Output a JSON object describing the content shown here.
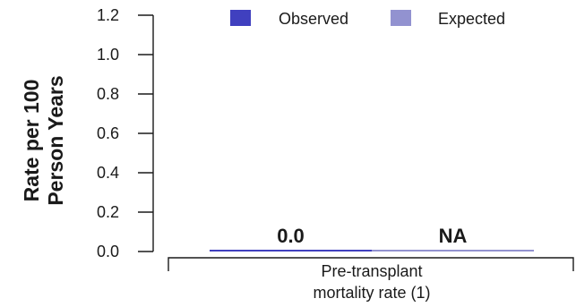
{
  "chart_data": {
    "type": "bar",
    "ylabel_lines": [
      "Rate per 100",
      "Person Years"
    ],
    "xlabel": "",
    "ylim": [
      0,
      1.2
    ],
    "yticks": [
      "0.0",
      "0.2",
      "0.4",
      "0.6",
      "0.8",
      "1.0",
      "1.2"
    ],
    "categories": [
      {
        "lines": [
          "Pre-transplant",
          "mortality rate (1)"
        ]
      }
    ],
    "series": [
      {
        "name": "Observed",
        "color": "#4040bf",
        "values": [
          0.0
        ],
        "labels": [
          "0.0"
        ]
      },
      {
        "name": "Expected",
        "color": "#9292d0",
        "values": [
          null
        ],
        "labels": [
          "NA"
        ]
      }
    ],
    "legend": {
      "position": "top"
    },
    "grid": false
  }
}
